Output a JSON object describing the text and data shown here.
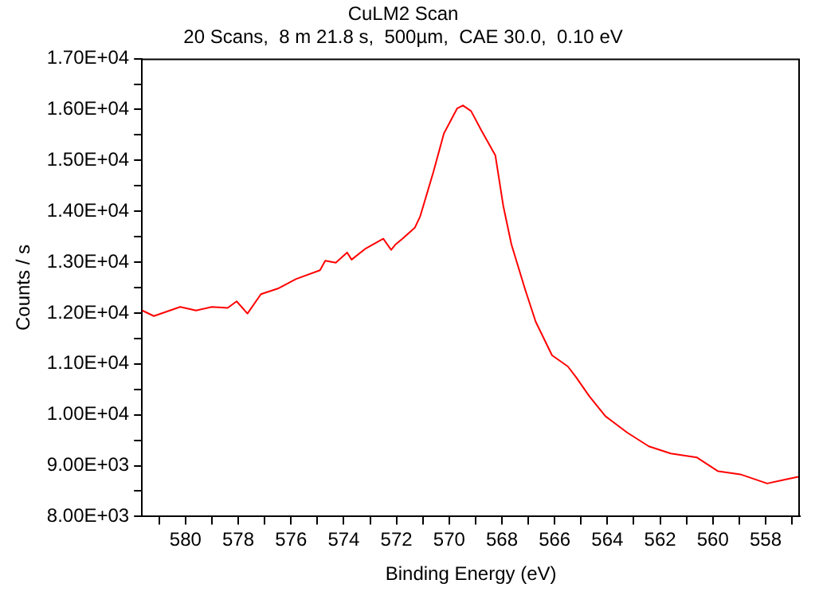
{
  "chart_data": {
    "type": "line",
    "title": "CuLM2 Scan",
    "subtitle": "20 Scans,  8 m 21.8 s,  500µm,  CAE 30.0,  0.10 eV",
    "xlabel": "Binding Energy (eV)",
    "ylabel": "Counts / s",
    "x": [
      581.64,
      581.2,
      580.2,
      579.6,
      579.0,
      578.4,
      578.06,
      577.65,
      577.14,
      576.5,
      575.8,
      574.9,
      574.7,
      574.3,
      573.87,
      573.7,
      573.16,
      572.5,
      572.2,
      572.03,
      571.73,
      571.3,
      571.1,
      570.6,
      570.2,
      569.7,
      569.48,
      569.17,
      568.77,
      568.25,
      567.95,
      567.64,
      567.13,
      566.72,
      566.1,
      565.5,
      565.19,
      564.68,
      564.07,
      563.25,
      562.43,
      561.6,
      560.6,
      559.8,
      558.96,
      557.94,
      557.33,
      556.76
    ],
    "series": [
      {
        "color": "#ff0000",
        "values": [
          12050,
          11940,
          12120,
          12050,
          12120,
          12100,
          12230,
          11990,
          12370,
          12480,
          12670,
          12840,
          13030,
          12990,
          13190,
          13050,
          13270,
          13460,
          13240,
          13350,
          13480,
          13680,
          13900,
          14770,
          15530,
          16020,
          16080,
          15970,
          15580,
          15100,
          14110,
          13350,
          12480,
          11830,
          11170,
          10950,
          10740,
          10360,
          9970,
          9650,
          9380,
          9240,
          9160,
          8890,
          8830,
          8650,
          8720,
          8780
        ]
      }
    ],
    "xlim": [
      581.65,
      556.7
    ],
    "xticks": [
      {
        "value": 581,
        "label": null
      },
      580,
      {
        "value": 579,
        "label": null
      },
      578,
      {
        "value": 577,
        "label": null
      },
      576,
      {
        "value": 575,
        "label": null
      },
      574,
      {
        "value": 573,
        "label": null
      },
      572,
      {
        "value": 571,
        "label": null
      },
      570,
      {
        "value": 569,
        "label": null
      },
      568,
      {
        "value": 567,
        "label": null
      },
      566,
      {
        "value": 565,
        "label": null
      },
      564,
      {
        "value": 563,
        "label": null
      },
      562,
      {
        "value": 561,
        "label": null
      },
      560,
      {
        "value": 559,
        "label": null
      },
      558,
      {
        "value": 557,
        "label": null
      }
    ],
    "ylim": [
      8000,
      17000
    ],
    "yticks": [
      {
        "value": 8000,
        "label": "8.00E+03"
      },
      {
        "value": 8500,
        "label": null
      },
      {
        "value": 9000,
        "label": "9.00E+03"
      },
      {
        "value": 9500,
        "label": null
      },
      {
        "value": 10000,
        "label": "1.00E+04"
      },
      {
        "value": 10500,
        "label": null
      },
      {
        "value": 11000,
        "label": "1.10E+04"
      },
      {
        "value": 11500,
        "label": null
      },
      {
        "value": 12000,
        "label": "1.20E+04"
      },
      {
        "value": 12500,
        "label": null
      },
      {
        "value": 13000,
        "label": "1.30E+04"
      },
      {
        "value": 13500,
        "label": null
      },
      {
        "value": 14000,
        "label": "1.40E+04"
      },
      {
        "value": 14500,
        "label": null
      },
      {
        "value": 15000,
        "label": "1.50E+04"
      },
      {
        "value": 15500,
        "label": null
      },
      {
        "value": 16000,
        "label": "1.60E+04"
      },
      {
        "value": 16500,
        "label": null
      },
      {
        "value": 17000,
        "label": "1.70E+04"
      }
    ],
    "grid": false,
    "legend": false,
    "marker": "none",
    "line_style": "solid"
  }
}
